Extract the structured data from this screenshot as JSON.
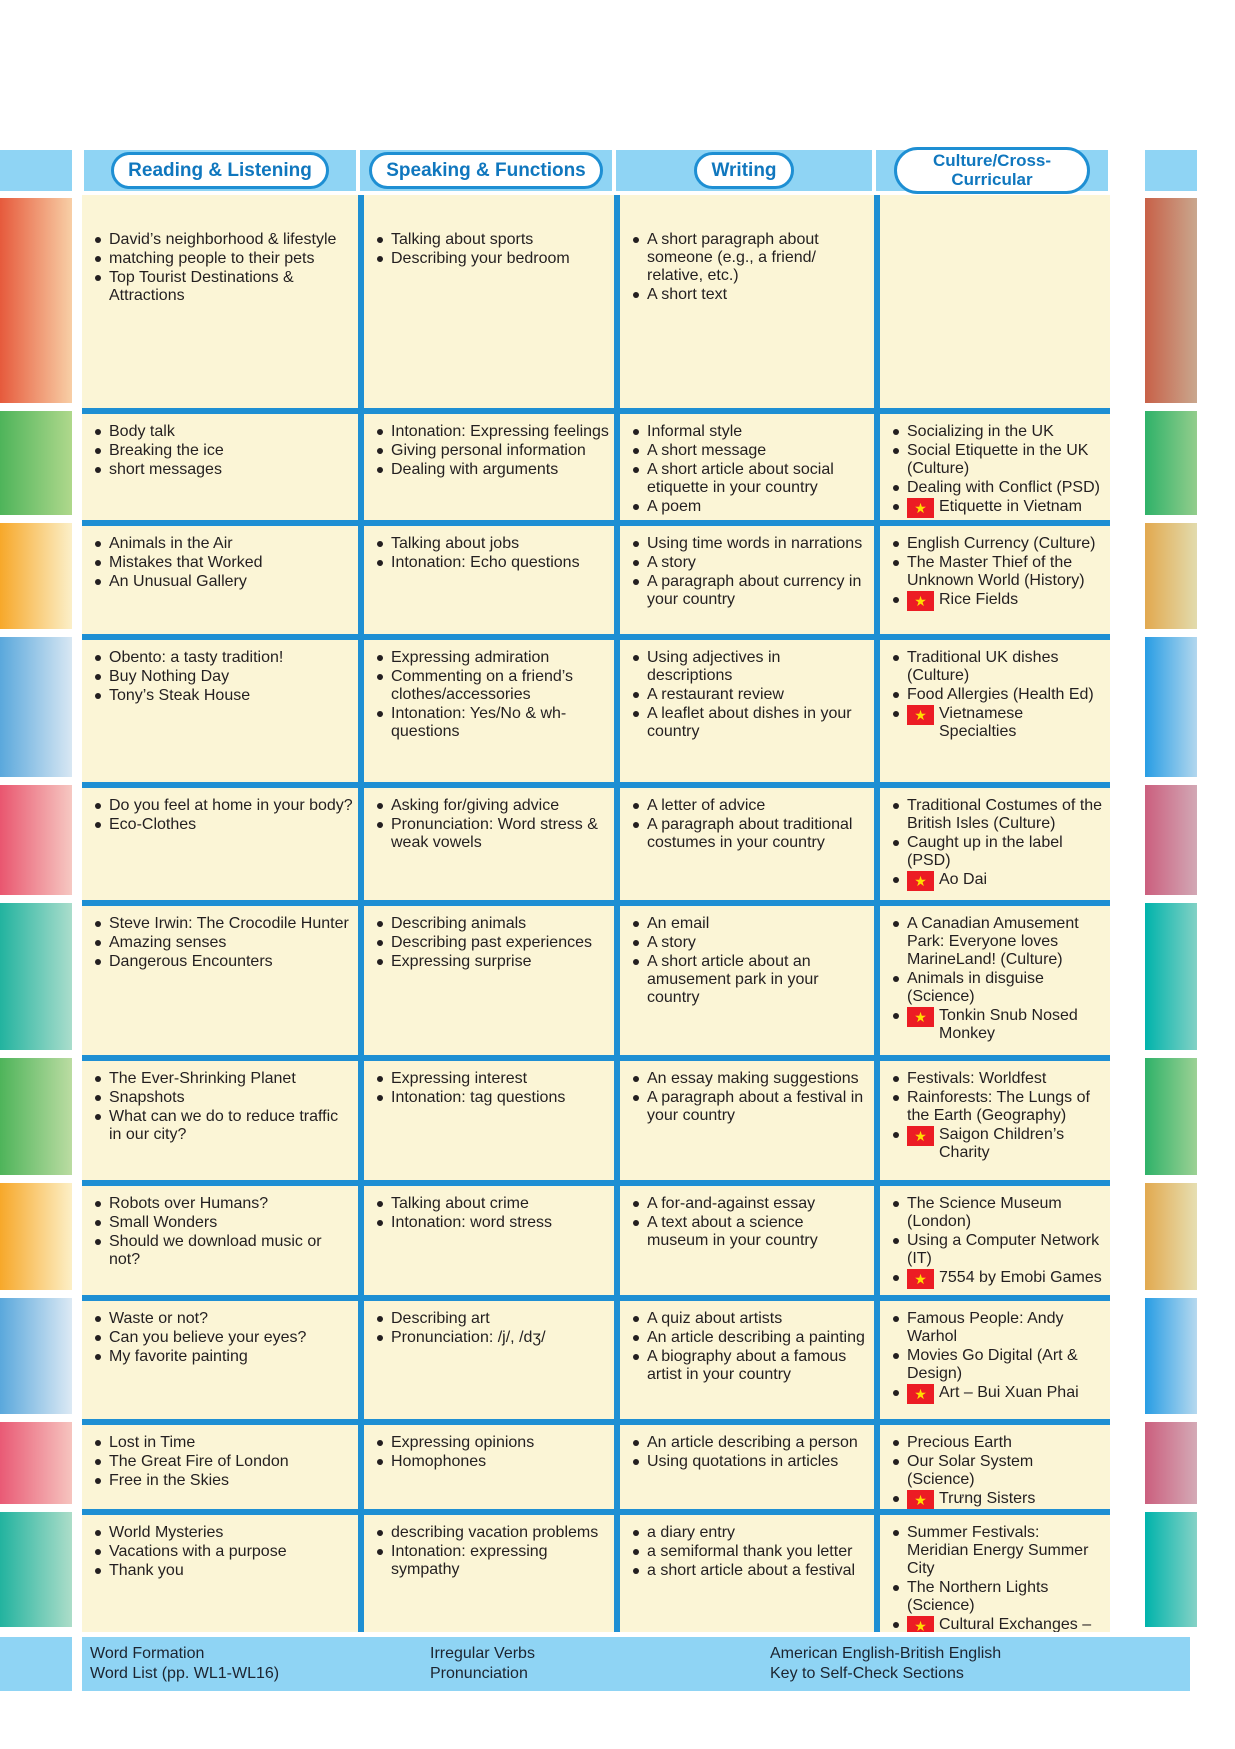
{
  "header": {
    "columns": [
      "Reading & Listening",
      "Speaking & Functions",
      "Writing",
      "Culture/Cross-Curricular"
    ]
  },
  "colors": {
    "band_blue": "#8FD4F4",
    "line_blue": "#1E8FD3",
    "cell_yellow": "#FBF5D6",
    "pill_text": "#1077BE",
    "ink": "#231F20",
    "flag_red": "#EC1C24",
    "star_yellow": "#FFDE00"
  },
  "rows": [
    {
      "band_left": [
        "#E65A3C",
        "#F8CFA6"
      ],
      "band_right": [
        "#C86148",
        "#C9A78E"
      ],
      "reading": [
        "David’s neighborhood & lifestyle",
        "matching people to their pets",
        "Top Tourist Destinations & Attractions"
      ],
      "speaking": [
        "Talking about sports",
        "Describing your bedroom"
      ],
      "writing": [
        "A short paragraph about someone (e.g., a friend/ relative, etc.)",
        "A short text"
      ],
      "culture": []
    },
    {
      "band_left": [
        "#4EB45A",
        "#AFD88C"
      ],
      "band_right": [
        "#2FB269",
        "#93CD8C"
      ],
      "reading": [
        "Body talk",
        "Breaking the ice",
        "short messages"
      ],
      "speaking": [
        "Intonation: Expressing feelings",
        "Giving personal information",
        "Dealing with arguments"
      ],
      "writing": [
        "Informal style",
        "A short message",
        "A short article about social etiquette in your country",
        "A poem"
      ],
      "culture": [
        "Socializing in the UK",
        "Social Etiquette in the UK (Culture)",
        "Dealing with Conflict (PSD)",
        {
          "flag": true,
          "text": "Etiquette in Vietnam"
        }
      ]
    },
    {
      "band_left": [
        "#F7A82A",
        "#FBEFC8"
      ],
      "band_right": [
        "#E2A94F",
        "#E2DBAD"
      ],
      "reading": [
        "Animals in the Air",
        "Mistakes that Worked",
        "An Unusual Gallery"
      ],
      "speaking": [
        "Talking about jobs",
        "Intonation: Echo questions"
      ],
      "writing": [
        "Using time words in narrations",
        "A story",
        "A paragraph about currency in your country"
      ],
      "culture": [
        "English Currency (Culture)",
        "The Master Thief of the Unknown World (History)",
        {
          "flag": true,
          "text": "Rice Fields"
        }
      ]
    },
    {
      "band_left": [
        "#5AA8DC",
        "#D8E7F3"
      ],
      "band_right": [
        "#289DE4",
        "#B2D7EE"
      ],
      "reading": [
        "Obento: a tasty tradition!",
        "Buy Nothing Day",
        "Tony’s Steak House"
      ],
      "speaking": [
        "Expressing admiration",
        "Commenting on a friend’s clothes/accessories",
        "Intonation: Yes/No & wh-questions"
      ],
      "writing": [
        "Using adjectives in descriptions",
        "A restaurant review",
        "A leaflet about dishes in your country"
      ],
      "culture": [
        "Traditional UK dishes (Culture)",
        "Food Allergies (Health Ed)",
        {
          "flag": true,
          "text": "Vietnamese Specialties"
        }
      ]
    },
    {
      "band_left": [
        "#E9566F",
        "#F6C8C2"
      ],
      "band_right": [
        "#CB5F7E",
        "#D2A8B5"
      ],
      "reading": [
        "Do you feel at home in your body?",
        "Eco-Clothes"
      ],
      "speaking": [
        "Asking for/giving advice",
        "Pronunciation: Word stress & weak vowels"
      ],
      "writing": [
        "A letter of advice",
        "A paragraph about traditional costumes in your country"
      ],
      "culture": [
        "Traditional Costumes of the British Isles (Culture)",
        "Caught up in the label (PSD)",
        {
          "flag": true,
          "text": "Ao Dai"
        }
      ]
    },
    {
      "band_left": [
        "#22B39F",
        "#AADDCC"
      ],
      "band_right": [
        "#00B3AB",
        "#82D1C5"
      ],
      "reading": [
        "Steve Irwin: The Crocodile Hunter",
        "Amazing senses",
        "Dangerous Encounters"
      ],
      "speaking": [
        "Describing animals",
        "Describing past experiences",
        "Expressing surprise"
      ],
      "writing": [
        "An email",
        "A story",
        "A short article about an amusement park in your country"
      ],
      "culture": [
        "A Canadian Amusement Park: Everyone loves MarineLand! (Culture)",
        "Animals in disguise (Science)",
        {
          "flag": true,
          "text": "Tonkin Snub Nosed Monkey"
        }
      ]
    },
    {
      "band_left": [
        "#4EB45A",
        "#BBDCA2"
      ],
      "band_right": [
        "#2FB269",
        "#9CD194"
      ],
      "reading": [
        "The Ever-Shrinking Planet",
        "Snapshots",
        "What can we do to reduce traffic in our city?"
      ],
      "speaking": [
        "Expressing interest",
        "Intonation: tag questions"
      ],
      "writing": [
        "An essay making suggestions",
        "A paragraph about a festival in your country"
      ],
      "culture": [
        "Festivals: Worldfest",
        "Rainforests: The Lungs of the Earth (Geography)",
        {
          "flag": true,
          "text": "Saigon Children’s Charity"
        }
      ]
    },
    {
      "band_left": [
        "#F7A82A",
        "#FCEFC6"
      ],
      "band_right": [
        "#E2A94F",
        "#E6DFB2"
      ],
      "reading": [
        "Robots over Humans?",
        "Small Wonders",
        "Should we download music or not?"
      ],
      "speaking": [
        "Talking about crime",
        "Intonation: word stress"
      ],
      "writing": [
        "A for-and-against essay",
        "A text about a science museum in your country"
      ],
      "culture": [
        "The Science Museum (London)",
        "Using a Computer Network (IT)",
        {
          "flag": true,
          "text": "7554 by Emobi Games"
        }
      ]
    },
    {
      "band_left": [
        "#5AA8DC",
        "#DCE9F4"
      ],
      "band_right": [
        "#289DE4",
        "#B6D9EF"
      ],
      "reading": [
        "Waste or not?",
        "Can you believe your eyes?",
        "My favorite painting"
      ],
      "speaking": [
        "Describing art",
        "Pronunciation: /j/, /dʒ/"
      ],
      "writing": [
        "A quiz about artists",
        "An article describing a painting",
        "A biography about a famous artist in your country"
      ],
      "culture": [
        "Famous People: Andy Warhol",
        "Movies Go Digital (Art & Design)",
        {
          "flag": true,
          "text": "Art – Bui Xuan Phai"
        }
      ]
    },
    {
      "band_left": [
        "#E95A75",
        "#F6C4BF"
      ],
      "band_right": [
        "#CB5F7E",
        "#D4AAB6"
      ],
      "reading": [
        "Lost in Time",
        "The Great Fire of London",
        "Free in the Skies"
      ],
      "speaking": [
        "Expressing opinions",
        "Homophones"
      ],
      "writing": [
        "An article describing a person",
        "Using quotations in articles"
      ],
      "culture": [
        "Precious Earth",
        "Our Solar System (Science)",
        {
          "flag": true,
          "text": "Trưng Sisters"
        }
      ]
    },
    {
      "band_left": [
        "#22B39F",
        "#ACDDC9"
      ],
      "band_right": [
        "#00B3AB",
        "#85D2C6"
      ],
      "reading": [
        "World Mysteries",
        "Vacations with a purpose",
        "Thank you"
      ],
      "speaking": [
        "describing vacation problems",
        "Intonation: expressing sympathy"
      ],
      "writing": [
        "a diary entry",
        "a semiformal thank you letter",
        "a short article about a festival"
      ],
      "culture": [
        "Summer Festivals: Meridian Energy Summer City",
        "The Northern Lights (Science)",
        {
          "flag": true,
          "text": "Cultural Exchanges – Nha Trang"
        }
      ]
    }
  ],
  "footer": {
    "cols": [
      {
        "lines": [
          "Word Formation",
          "Word List (pp. WL1-WL16)"
        ]
      },
      {
        "lines": [
          "Irregular Verbs",
          "Pronunciation"
        ]
      },
      {
        "lines": [
          "American English-British English",
          "Key to Self-Check Sections"
        ]
      }
    ]
  }
}
